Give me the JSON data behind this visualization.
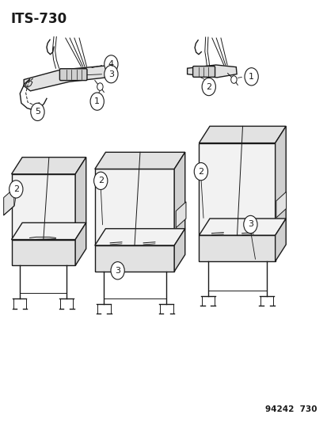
{
  "title": "ITS-730",
  "part_number": "94242  730",
  "bg_color": "#ffffff",
  "line_color": "#1a1a1a",
  "lw_thin": 0.7,
  "lw_med": 1.0,
  "lw_thick": 1.3,
  "fig_width": 4.14,
  "fig_height": 5.33,
  "dpi": 100,
  "title_fontsize": 12,
  "callout_fontsize": 8,
  "partnum_fontsize": 7.5,
  "fc_light": "#f2f2f2",
  "fc_mid": "#e2e2e2",
  "fc_dark": "#d0d0d0"
}
